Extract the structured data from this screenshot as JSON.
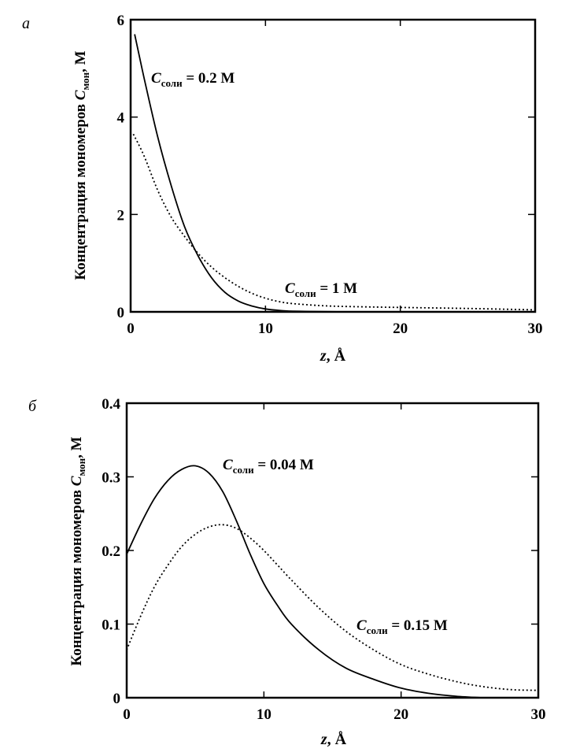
{
  "chart_data": [
    {
      "type": "line",
      "panel_label": "а",
      "xlabel": {
        "var": "z",
        "unit": ", Å"
      },
      "ylabel": {
        "text": "Концентрация мономеров ",
        "sym": "C",
        "sub": "мон",
        "unit": ", М"
      },
      "xlim": [
        0,
        30
      ],
      "ylim": [
        0,
        6
      ],
      "xticks": [
        "0",
        "10",
        "20",
        "30"
      ],
      "xtick_values": [
        0,
        10,
        20,
        30
      ],
      "yticks": [
        "0",
        "2",
        "4",
        "6"
      ],
      "ytick_values": [
        0,
        2,
        4,
        6
      ],
      "grid": false,
      "series": [
        {
          "name": "C_соли = 0.2 M",
          "style": "solid",
          "annotation": {
            "sym": "C",
            "sub": "соли",
            "value": " = 0.2 M"
          },
          "x": [
            0.3,
            1,
            2,
            3,
            4,
            5,
            6,
            7,
            8,
            9,
            10,
            11,
            12,
            14,
            16,
            20,
            25,
            30
          ],
          "y": [
            5.7,
            4.8,
            3.6,
            2.6,
            1.75,
            1.15,
            0.7,
            0.4,
            0.22,
            0.12,
            0.06,
            0.03,
            0.015,
            0.005,
            0.0,
            0.0,
            0.0,
            0.0
          ]
        },
        {
          "name": "C_соли = 1 M",
          "style": "dotted",
          "annotation": {
            "sym": "C",
            "sub": "соли",
            "value": " = 1 M"
          },
          "x": [
            0.2,
            1,
            2,
            3,
            4,
            5,
            6,
            7,
            8,
            9,
            10,
            11,
            12,
            14,
            16,
            20,
            25,
            30
          ],
          "y": [
            3.65,
            3.2,
            2.5,
            1.95,
            1.55,
            1.2,
            0.92,
            0.7,
            0.52,
            0.38,
            0.28,
            0.21,
            0.17,
            0.13,
            0.11,
            0.09,
            0.07,
            0.04
          ]
        }
      ]
    },
    {
      "type": "line",
      "panel_label": "б",
      "xlabel": {
        "var": "z",
        "unit": ", Å"
      },
      "ylabel": {
        "text": "Концентрация мономеров ",
        "sym": "C",
        "sub": "мон",
        "unit": ", М"
      },
      "xlim": [
        0,
        30
      ],
      "ylim": [
        0,
        0.4
      ],
      "xticks": [
        "0",
        "10",
        "20",
        "30"
      ],
      "xtick_values": [
        0,
        10,
        20,
        30
      ],
      "yticks": [
        "0",
        "0.1",
        "0.2",
        "0.3",
        "0.4"
      ],
      "ytick_values": [
        0,
        0.1,
        0.2,
        0.3,
        0.4
      ],
      "grid": false,
      "series": [
        {
          "name": "C_соли = 0.04 M",
          "style": "solid",
          "annotation": {
            "sym": "C",
            "sub": "соли",
            "value": " = 0.04 M"
          },
          "x": [
            0,
            1,
            2,
            3,
            4,
            5,
            6,
            7,
            8,
            9,
            10,
            11,
            12,
            14,
            16,
            18,
            20,
            22,
            24,
            26
          ],
          "y": [
            0.195,
            0.235,
            0.27,
            0.295,
            0.31,
            0.315,
            0.305,
            0.28,
            0.24,
            0.195,
            0.155,
            0.125,
            0.1,
            0.065,
            0.04,
            0.025,
            0.013,
            0.006,
            0.002,
            0.0
          ]
        },
        {
          "name": "C_соли = 0.15 M",
          "style": "dotted",
          "annotation": {
            "sym": "C",
            "sub": "соли",
            "value": " = 0.15 M"
          },
          "x": [
            0,
            1,
            2,
            3,
            4,
            5,
            6,
            7,
            8,
            9,
            10,
            11,
            12,
            14,
            16,
            18,
            20,
            22,
            24,
            26,
            28,
            30
          ],
          "y": [
            0.065,
            0.11,
            0.15,
            0.18,
            0.205,
            0.222,
            0.232,
            0.235,
            0.23,
            0.217,
            0.2,
            0.18,
            0.16,
            0.122,
            0.09,
            0.065,
            0.045,
            0.032,
            0.022,
            0.015,
            0.011,
            0.01
          ]
        }
      ]
    }
  ]
}
